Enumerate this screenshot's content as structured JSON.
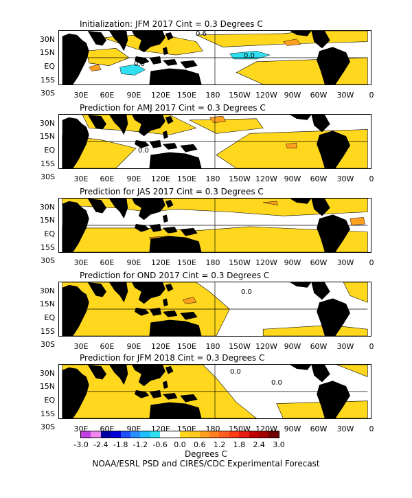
{
  "panels": [
    {
      "title": "Initialization: JFM 2017  Cint = 0.3 Degrees C"
    },
    {
      "title": "Prediction for AMJ 2017  Cint = 0.3 Degrees C"
    },
    {
      "title": "Prediction for JAS 2017  Cint = 0.3 Degrees C"
    },
    {
      "title": "Prediction for OND 2017  Cint = 0.3 Degrees C"
    },
    {
      "title": "Prediction for JFM 2018  Cint = 0.3 Degrees C"
    }
  ],
  "lat_labels": [
    "30N",
    "15N",
    "EQ",
    "15S",
    "30S"
  ],
  "lon_labels": [
    "30E",
    "60E",
    "90E",
    "120E",
    "150E",
    "180",
    "150W",
    "120W",
    "90W",
    "60W",
    "30W",
    "0"
  ],
  "contour_label": "0.0",
  "contour_label_b": "0.6",
  "colorbar": {
    "labels": [
      "-3.0",
      "-2.4",
      "-1.8",
      "-1.2",
      "-0.6",
      "0.0",
      "0.6",
      "1.2",
      "1.8",
      "2.4",
      "3.0"
    ],
    "colors": [
      "#c040e0",
      "#ee88ee",
      "#0000a0",
      "#0000d8",
      "#1e50ff",
      "#2890ff",
      "#1ec0ff",
      "#30e0f0",
      "#ffffff",
      "#ffffff",
      "#ffd81e",
      "#ffc81e",
      "#ffa01e",
      "#ff8020",
      "#ff6020",
      "#ff3c14",
      "#e81e14",
      "#c00000",
      "#a00000",
      "#700000"
    ]
  },
  "units_label": "Degrees C",
  "credit": "NOAA/ESRL PSD and CIRES/CDC Experimental Forecast"
}
